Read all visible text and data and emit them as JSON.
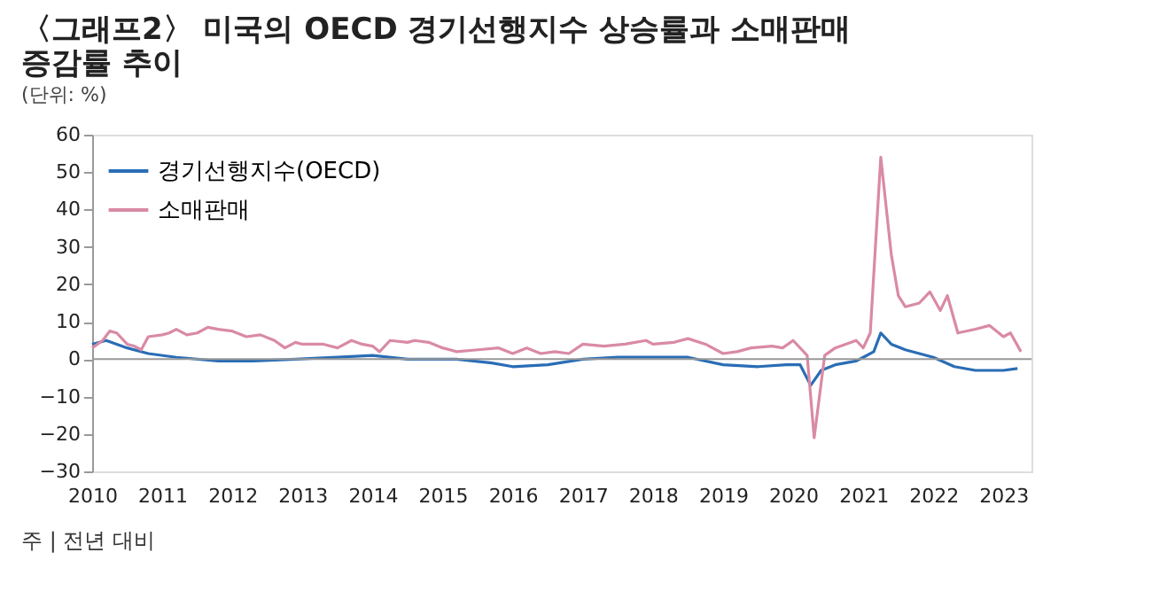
{
  "chart_data": {
    "type": "line",
    "title": "〈그래프2〉 미국의 OECD 경기선행지수 상승률과 소매판매 증감률 추이",
    "subtitle": "(단위: %)",
    "annotations": [
      "주 | 전년 대비"
    ],
    "xlim": [
      2010,
      2023.4
    ],
    "xticks": [
      2010,
      2011,
      2012,
      2013,
      2014,
      2015,
      2016,
      2017,
      2018,
      2019,
      2020,
      2021,
      2022,
      2023
    ],
    "ylim": [
      -30,
      60
    ],
    "yticks": [
      -30,
      -20,
      -10,
      0,
      10,
      20,
      30,
      40,
      50,
      60
    ],
    "grid": false,
    "legend": "top left",
    "line_style": "solid",
    "marker": "none",
    "ref_lines": [
      {
        "axis": "y",
        "value": 0,
        "color": "#999999"
      }
    ],
    "series": [
      {
        "name": "경기선행지수(OECD)",
        "color": "#2a6db5",
        "x": [
          2010.0,
          2010.2,
          2010.5,
          2010.8,
          2011.2,
          2011.8,
          2012.3,
          2012.9,
          2013.5,
          2014.0,
          2014.5,
          2015.2,
          2015.7,
          2016.0,
          2016.5,
          2017.0,
          2017.5,
          2018.0,
          2018.5,
          2019.0,
          2019.5,
          2019.9,
          2020.1,
          2020.25,
          2020.4,
          2020.6,
          2020.9,
          2021.0,
          2021.15,
          2021.25,
          2021.4,
          2021.6,
          2022.0,
          2022.3,
          2022.6,
          2023.0,
          2023.2
        ],
        "values": [
          4,
          5,
          3,
          1.5,
          0.5,
          -0.5,
          -0.5,
          0,
          0.5,
          1,
          0,
          0,
          -1,
          -2,
          -1.5,
          0,
          0.5,
          0.5,
          0.5,
          -1.5,
          -2,
          -1.5,
          -1.5,
          -7,
          -3,
          -1.5,
          -0.5,
          0.5,
          2,
          7,
          4,
          2.5,
          0.5,
          -2,
          -3,
          -3,
          -2.5
        ]
      },
      {
        "name": "소매판매",
        "color": "#d98aa5",
        "x": [
          2010.0,
          2010.15,
          2010.25,
          2010.35,
          2010.5,
          2010.6,
          2010.7,
          2010.8,
          2011.0,
          2011.1,
          2011.2,
          2011.35,
          2011.5,
          2011.65,
          2011.8,
          2012.0,
          2012.2,
          2012.4,
          2012.6,
          2012.75,
          2012.9,
          2013.0,
          2013.3,
          2013.5,
          2013.7,
          2013.85,
          2014.0,
          2014.1,
          2014.25,
          2014.5,
          2014.6,
          2014.8,
          2015.0,
          2015.2,
          2015.5,
          2015.8,
          2016.0,
          2016.2,
          2016.4,
          2016.6,
          2016.8,
          2017.0,
          2017.3,
          2017.6,
          2017.9,
          2018.0,
          2018.3,
          2018.5,
          2018.75,
          2019.0,
          2019.2,
          2019.4,
          2019.7,
          2019.85,
          2020.0,
          2020.2,
          2020.3,
          2020.45,
          2020.6,
          2020.9,
          2021.0,
          2021.1,
          2021.25,
          2021.4,
          2021.5,
          2021.6,
          2021.8,
          2021.95,
          2022.1,
          2022.2,
          2022.35,
          2022.6,
          2022.8,
          2023.0,
          2023.1,
          2023.25
        ],
        "values": [
          3,
          5,
          7.5,
          7,
          4,
          3.5,
          2.5,
          6,
          6.5,
          7,
          8,
          6.5,
          7,
          8.5,
          8,
          7.5,
          6,
          6.5,
          5,
          3,
          4.5,
          4,
          4,
          3,
          5,
          4,
          3.5,
          2,
          5,
          4.5,
          5,
          4.5,
          3,
          2,
          2.5,
          3,
          1.5,
          3,
          1.5,
          2,
          1.5,
          4,
          3.5,
          4,
          5,
          4,
          4.5,
          5.5,
          4,
          1.5,
          2,
          3,
          3.5,
          3,
          5,
          1,
          -21,
          1,
          3,
          5,
          3,
          7,
          54,
          28,
          17,
          14,
          15,
          18,
          13,
          17,
          7,
          8,
          9,
          6,
          7,
          2
        ]
      }
    ]
  }
}
